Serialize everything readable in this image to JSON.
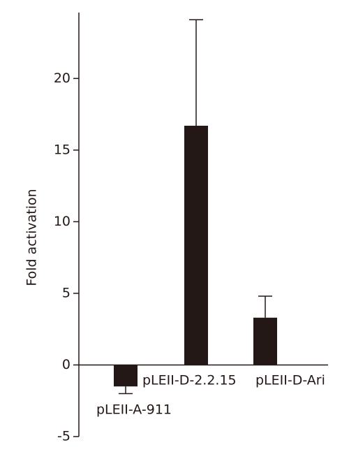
{
  "chart_data": {
    "type": "bar",
    "y_label": "Fold activation",
    "categories": [
      "pLEII-A-911",
      "pLEII-D-2.2.15",
      "pLEII-D-Ari"
    ],
    "values": [
      -1.5,
      16.7,
      3.3
    ],
    "errors": [
      0.5,
      7.4,
      1.5
    ],
    "color": "#231815",
    "ylim": [
      -5,
      24.6
    ],
    "yticks": [
      -5,
      0,
      5,
      10,
      15,
      20
    ],
    "grid": false
  }
}
